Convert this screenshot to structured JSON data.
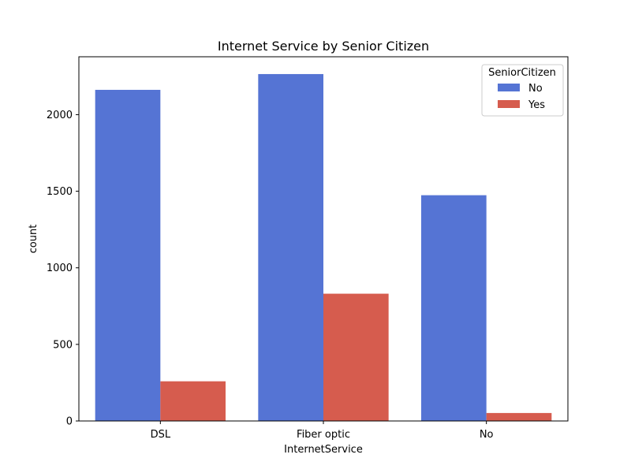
{
  "chart_data": {
    "type": "bar",
    "title": "Internet Service by Senior Citizen",
    "xlabel": "InternetService",
    "ylabel": "count",
    "categories": [
      "DSL",
      "Fiber optic",
      "No"
    ],
    "series": [
      {
        "name": "No",
        "values": [
          2162,
          2265,
          1474
        ],
        "color": "#4C72B0"
      },
      {
        "name": "Yes",
        "values": [
          259,
          831,
          52
        ],
        "color": "#DD5A4C"
      }
    ],
    "ylim": [
      0,
      2378
    ],
    "yticks": [
      0,
      500,
      1000,
      1500,
      2000
    ],
    "grid": false,
    "legend": {
      "title": "SeniorCitizen",
      "placement": "top-right"
    }
  },
  "colors": {
    "series_no": "#5574D4",
    "series_yes": "#D65C4E"
  }
}
